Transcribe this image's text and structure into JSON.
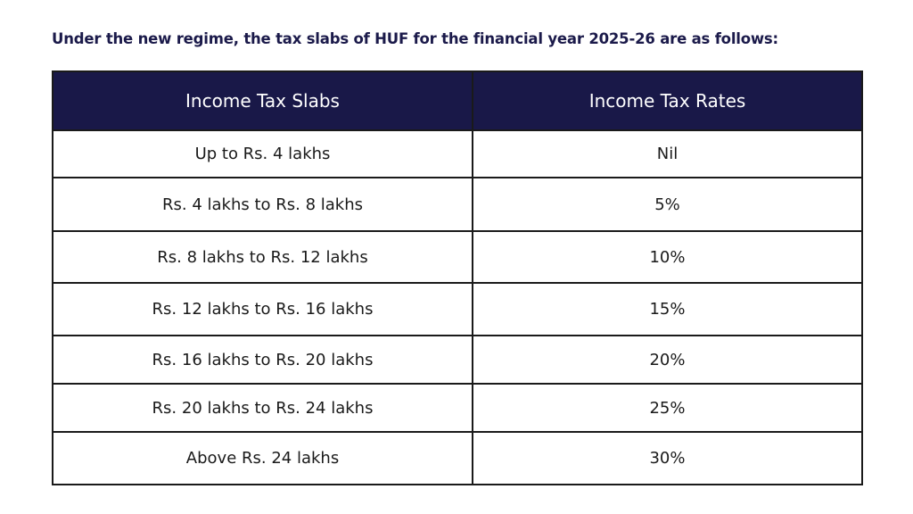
{
  "heading": "Under the new regime, the tax slabs of HUF for the financial year 2025-26 are as follows:",
  "table": {
    "headers": [
      "Income Tax Slabs",
      "Income Tax Rates"
    ],
    "rows": [
      [
        "Up to Rs. 4 lakhs",
        "Nil"
      ],
      [
        "Rs. 4 lakhs to Rs. 8 lakhs",
        "5%"
      ],
      [
        "Rs. 8 lakhs to Rs. 12 lakhs",
        "10%"
      ],
      [
        "Rs. 12 lakhs to Rs. 16 lakhs",
        "15%"
      ],
      [
        "Rs. 16 lakhs to Rs. 20 lakhs",
        "20%"
      ],
      [
        "Rs. 20 lakhs to Rs. 24 lakhs",
        "25%"
      ],
      [
        "Above Rs. 24 lakhs",
        "30%"
      ]
    ]
  },
  "colors": {
    "header_background": "#191848",
    "heading_text": "#1b1a4a"
  }
}
